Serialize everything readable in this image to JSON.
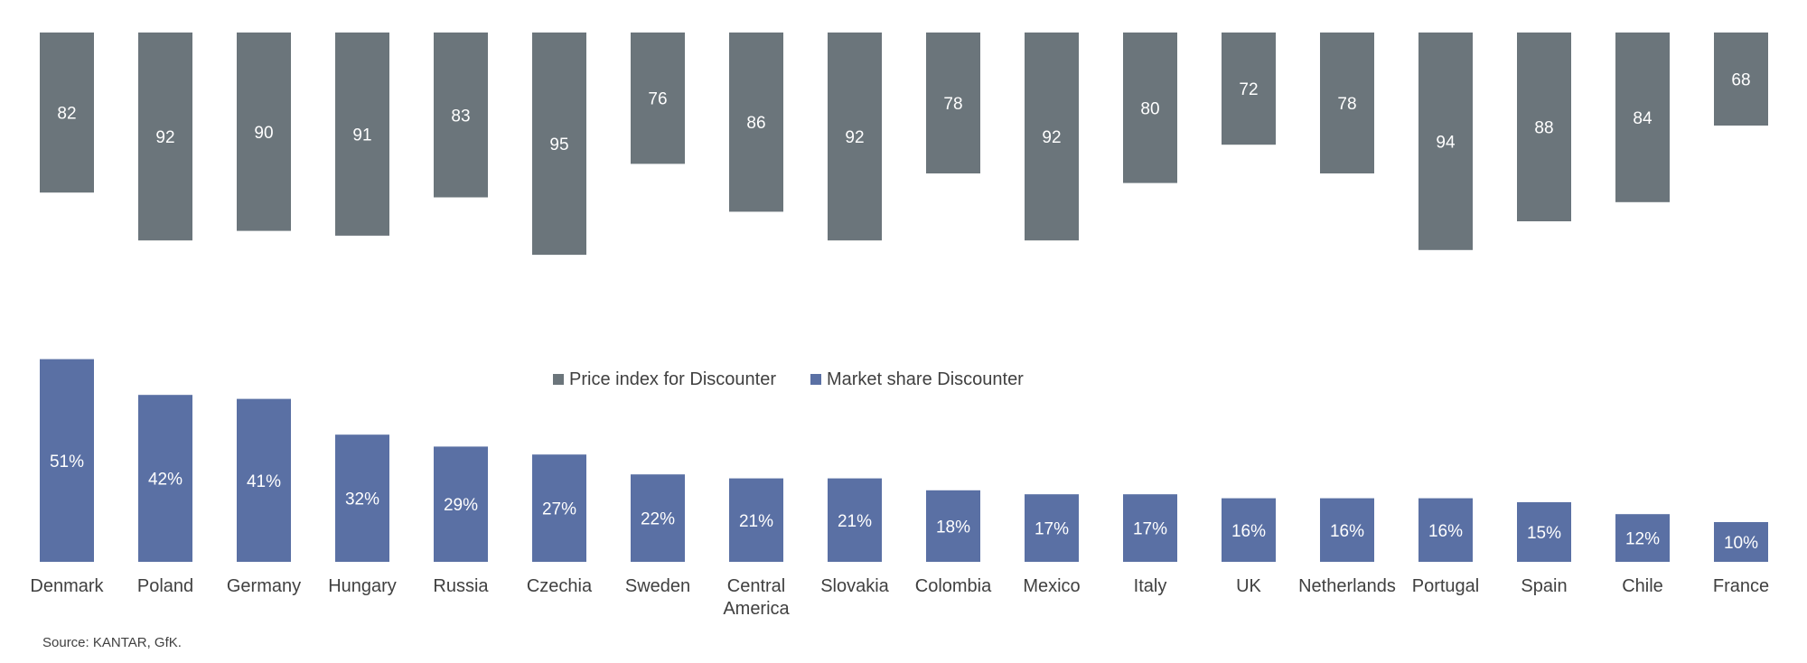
{
  "chart_data": {
    "type": "bar",
    "categories": [
      "Denmark",
      "Poland",
      "Germany",
      "Hungary",
      "Russia",
      "Czechia",
      "Sweden",
      "Central America",
      "Slovakia",
      "Colombia",
      "Mexico",
      "Italy",
      "UK",
      "Netherlands",
      "Portugal",
      "Spain",
      "Chile",
      "France"
    ],
    "series": [
      {
        "name": "Price index for Discounter",
        "values": [
          82,
          92,
          90,
          91,
          83,
          95,
          76,
          86,
          92,
          78,
          92,
          80,
          72,
          78,
          94,
          88,
          84,
          68
        ],
        "labels": [
          "82",
          "92",
          "90",
          "91",
          "83",
          "95",
          "76",
          "86",
          "92",
          "78",
          "92",
          "80",
          "72",
          "78",
          "94",
          "88",
          "84",
          "68"
        ],
        "color": "#6b757b",
        "orientation": "hanging from top"
      },
      {
        "name": "Market share Discounter",
        "values": [
          51,
          42,
          41,
          32,
          29,
          27,
          22,
          21,
          21,
          18,
          17,
          17,
          16,
          16,
          16,
          15,
          12,
          10
        ],
        "labels": [
          "51%",
          "42%",
          "41%",
          "32%",
          "29%",
          "27%",
          "22%",
          "21%",
          "21%",
          "18%",
          "17%",
          "17%",
          "16%",
          "16%",
          "16%",
          "15%",
          "12%",
          "10%"
        ],
        "color": "#5a70a4",
        "unit": "%",
        "orientation": "rising from baseline"
      }
    ],
    "legend": {
      "position": "middle"
    },
    "grid": false
  },
  "legend": {
    "price_label": "Price index for Discounter",
    "share_label": "Market share Discounter"
  },
  "source": "Source: KANTAR, GfK."
}
